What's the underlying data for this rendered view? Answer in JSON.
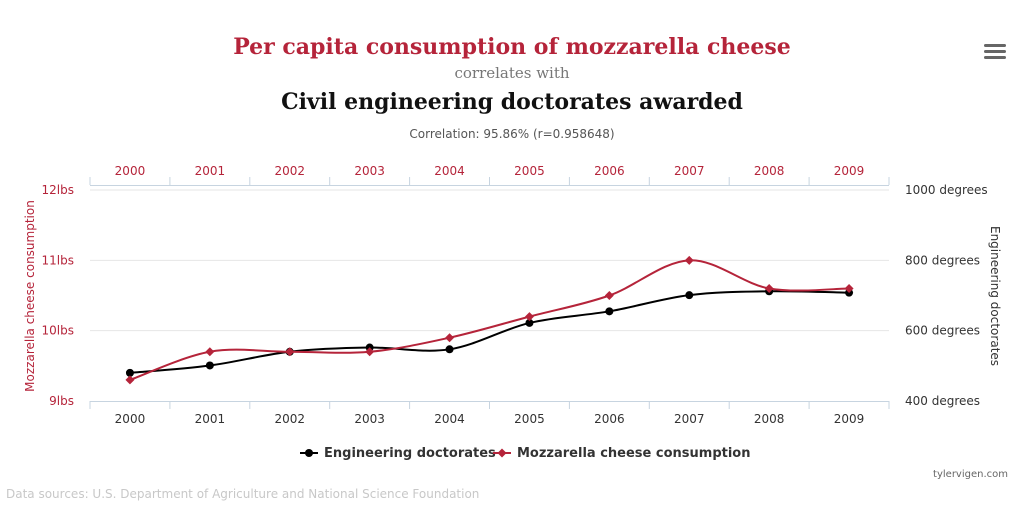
{
  "header": {
    "title": "Per capita consumption of mozzarella cheese",
    "connector": "correlates with",
    "title2": "Civil engineering doctorates awarded",
    "correlation": "Correlation: 95.86% (r=0.958648)"
  },
  "footer": {
    "credit": "tylervigen.com",
    "sources": "Data sources: U.S. Department of Agriculture and National Science Foundation"
  },
  "colors": {
    "mozzarella": "#b5243a",
    "engineering": "#000000"
  },
  "chart_data": {
    "type": "line",
    "x": [
      "2000",
      "2001",
      "2002",
      "2003",
      "2004",
      "2005",
      "2006",
      "2007",
      "2008",
      "2009"
    ],
    "series": [
      {
        "name": "Engineering doctorates",
        "axis": "right",
        "marker": "circle",
        "color": "#000000",
        "values": [
          480,
          501,
          540,
          552,
          547,
          622,
          655,
          701,
          712,
          708
        ]
      },
      {
        "name": "Mozzarella cheese consumption",
        "axis": "left",
        "marker": "diamond",
        "color": "#b5243a",
        "values": [
          9.3,
          9.7,
          9.7,
          9.7,
          9.9,
          10.2,
          10.5,
          11.0,
          10.6,
          10.6
        ]
      }
    ],
    "y_left": {
      "label": "Mozzarella cheese consumption",
      "range": [
        9,
        12
      ],
      "ticks": [
        9,
        10,
        11,
        12
      ],
      "tick_labels": [
        "9lbs",
        "10lbs",
        "11lbs",
        "12lbs"
      ]
    },
    "y_right": {
      "label": "Engineering doctorates",
      "range": [
        400,
        1000
      ],
      "ticks": [
        400,
        600,
        800,
        1000
      ],
      "tick_labels": [
        "400 degrees",
        "600 degrees",
        "800 degrees",
        "1000 degrees"
      ]
    },
    "x_top_labels": true,
    "grid": "horizontal",
    "legend_position": "bottom-center"
  }
}
